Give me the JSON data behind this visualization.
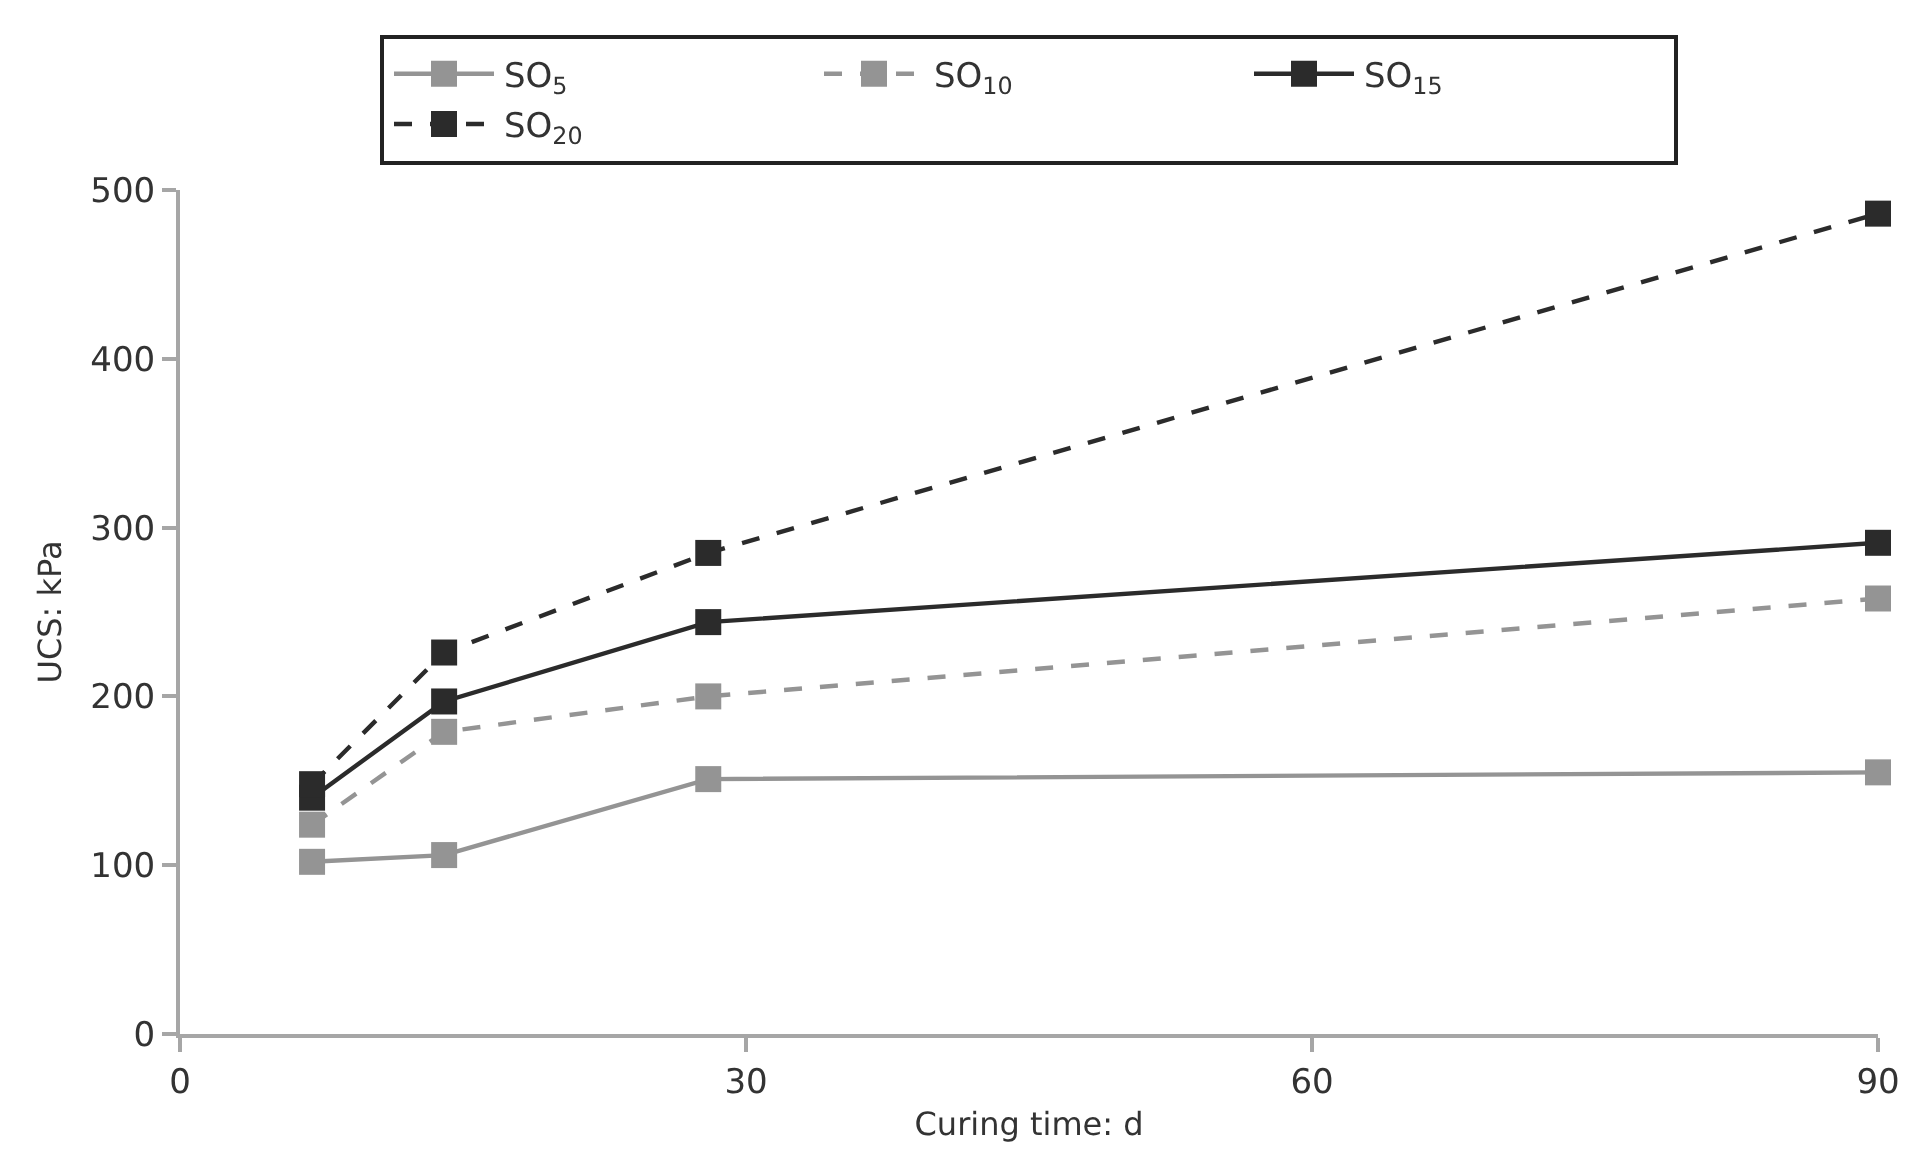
{
  "chart_data": {
    "type": "line",
    "xlabel": "Curing time: d",
    "ylabel": "UCS: kPa",
    "x": [
      7,
      14,
      28,
      90
    ],
    "series": [
      {
        "name": "SO$_{5}$",
        "color": "#949494",
        "line_style": "solid",
        "values": [
          102,
          106,
          151,
          155
        ]
      },
      {
        "name": "SO$_{10}$",
        "color": "#949494",
        "line_style": "dashed",
        "values": [
          124,
          179,
          200,
          258
        ]
      },
      {
        "name": "SO$_{15}$",
        "color": "#2b2b2b",
        "line_style": "solid",
        "values": [
          140,
          197,
          244,
          291
        ]
      },
      {
        "name": "SO$_{20}$",
        "color": "#2b2b2b",
        "line_style": "dashed",
        "values": [
          148,
          226,
          285,
          486
        ]
      }
    ],
    "xlim": [
      0,
      90
    ],
    "xticks": [
      0,
      30,
      60,
      90
    ],
    "ylim": [
      0,
      500
    ],
    "yticks": [
      0,
      100,
      200,
      300,
      400,
      500
    ],
    "legend": "top",
    "marker": "square"
  }
}
